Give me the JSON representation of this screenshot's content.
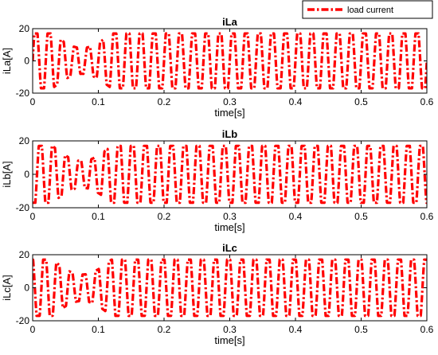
{
  "legend": {
    "label": "load current",
    "color": "#ff0000",
    "style": "dash-dot"
  },
  "chart_data": [
    {
      "type": "line",
      "title": "iLa",
      "xlabel": "time[s]",
      "ylabel": "iLa[A]",
      "xlim": [
        0,
        0.6
      ],
      "ylim": [
        -20,
        20
      ],
      "xticks": [
        "0",
        "0.1",
        "0.2",
        "0.3",
        "0.4",
        "0.5",
        "0.6"
      ],
      "yticks": [
        "-20",
        "0",
        "20"
      ],
      "grid": false,
      "series": [
        {
          "name": "load current",
          "color": "#ff0000",
          "waveform": "50 Hz current, flattened peaks, transient dip 0.03–0.12 s",
          "frequency_hz": 50,
          "steady_amplitude": 17,
          "phase_deg": 0,
          "transient_start": 0.03,
          "transient_end": 0.12,
          "transient_min_amplitude": 8
        }
      ]
    },
    {
      "type": "line",
      "title": "iLb",
      "xlabel": "time[s]",
      "ylabel": "iLb[A]",
      "xlim": [
        0,
        0.6
      ],
      "ylim": [
        -20,
        20
      ],
      "xticks": [
        "0",
        "0.1",
        "0.2",
        "0.3",
        "0.4",
        "0.5",
        "0.6"
      ],
      "yticks": [
        "-20",
        "0",
        "20"
      ],
      "grid": false,
      "series": [
        {
          "name": "load current",
          "color": "#ff0000",
          "waveform": "50 Hz current, flattened peaks, transient dip 0.03–0.12 s",
          "frequency_hz": 50,
          "steady_amplitude": 17,
          "phase_deg": -120,
          "transient_start": 0.03,
          "transient_end": 0.12,
          "transient_min_amplitude": 8
        }
      ]
    },
    {
      "type": "line",
      "title": "iLc",
      "xlabel": "time[s]",
      "ylabel": "iLc[A]",
      "xlim": [
        0,
        0.6
      ],
      "ylim": [
        -20,
        20
      ],
      "xticks": [
        "0",
        "0.1",
        "0.2",
        "0.3",
        "0.4",
        "0.5",
        "0.6"
      ],
      "yticks": [
        "-20",
        "0",
        "20"
      ],
      "grid": false,
      "series": [
        {
          "name": "load current",
          "color": "#ff0000",
          "waveform": "50 Hz current, flattened peaks, transient dip 0.03–0.12 s",
          "frequency_hz": 50,
          "steady_amplitude": 17,
          "phase_deg": 120,
          "transient_start": 0.03,
          "transient_end": 0.12,
          "transient_min_amplitude": 8
        }
      ]
    }
  ]
}
